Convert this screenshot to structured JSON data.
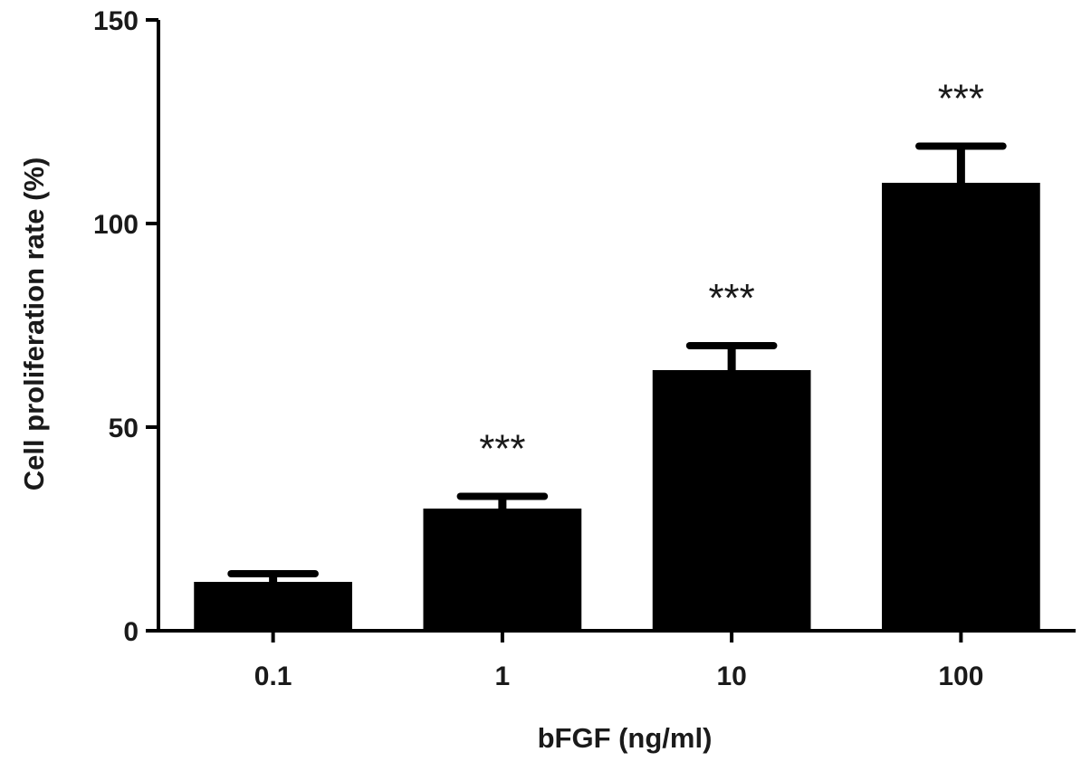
{
  "chart_data": {
    "type": "bar",
    "title": "",
    "xlabel": "bFGF (ng/ml)",
    "ylabel": "Cell proliferation rate (%)",
    "categories": [
      "0.1",
      "1",
      "10",
      "100"
    ],
    "values": [
      12,
      30,
      64,
      110
    ],
    "errors": [
      2,
      3,
      6,
      9
    ],
    "annotations": [
      "",
      "***",
      "***",
      "***"
    ],
    "ylim": [
      0,
      150
    ],
    "yticks": [
      0,
      50,
      100,
      150
    ],
    "ytick_labels": [
      "0",
      "50",
      "100",
      "150"
    ],
    "grid": false,
    "legend": "none",
    "bar_color": "#000000",
    "axis_color": "#000000"
  }
}
